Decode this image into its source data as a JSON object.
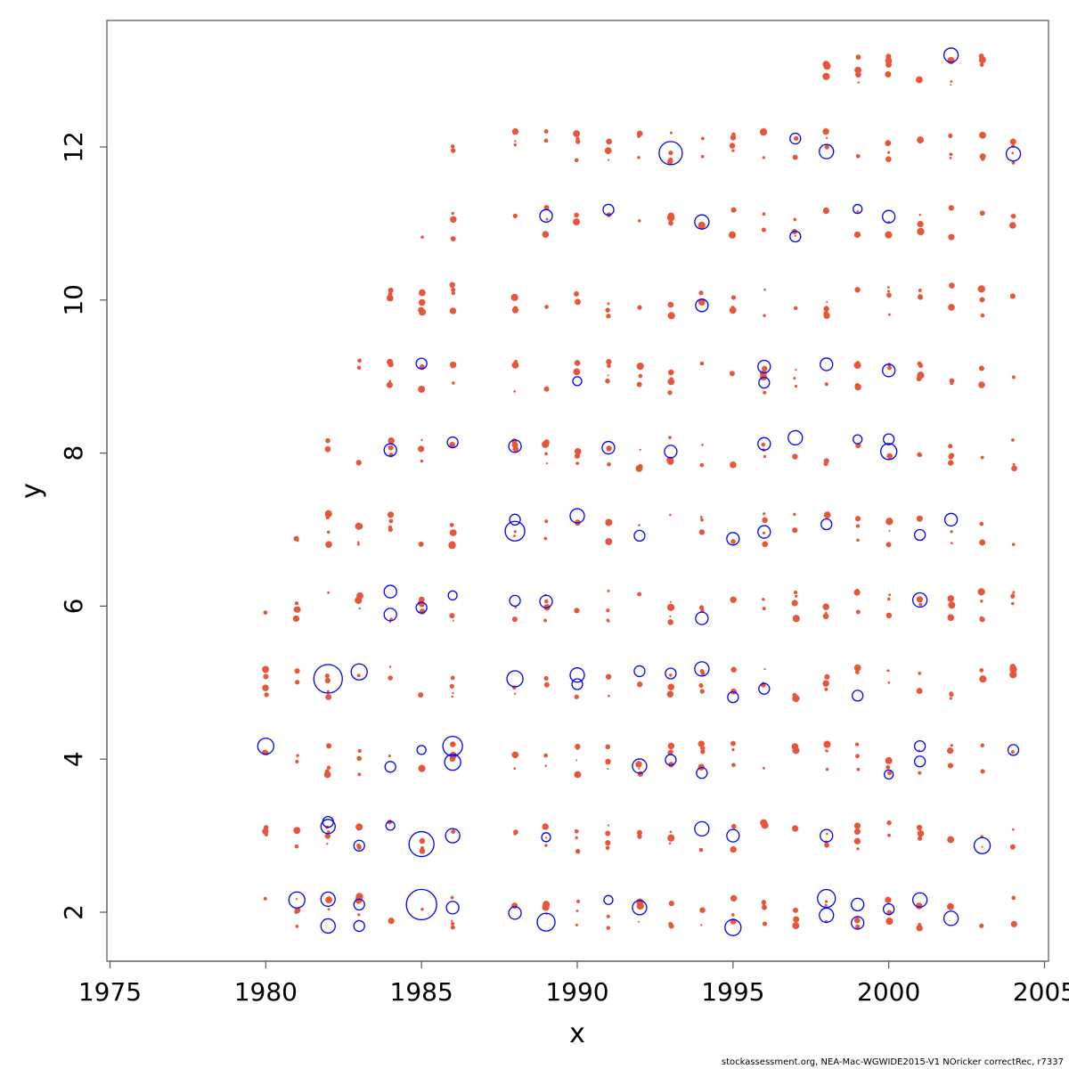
{
  "chart_data": {
    "type": "scatter",
    "title": "",
    "xlabel": "x",
    "ylabel": "y",
    "xlim": [
      1975,
      2005
    ],
    "ylim": [
      1.35,
      13.5
    ],
    "xticks": [
      "1975",
      "1980",
      "1985",
      "1990",
      "1995",
      "2000",
      "2005"
    ],
    "yticks": [
      "2",
      "4",
      "6",
      "8",
      "10",
      "12"
    ],
    "grid": false,
    "legend": "none",
    "colors": {
      "positive": "#0000ff",
      "negative": "#e8563a",
      "axis": "#555555"
    },
    "series": [
      {
        "values": [
          {
            "x": 1980,
            "y": 4.17,
            "r": 9
          },
          {
            "x": 1981,
            "y": 2.16,
            "r": 9
          },
          {
            "x": 1982,
            "y": 5.05,
            "r": 16
          },
          {
            "x": 1982,
            "y": 2.17,
            "r": 8
          },
          {
            "x": 1982,
            "y": 1.82,
            "r": 8
          },
          {
            "x": 1982,
            "y": 3.12,
            "r": 8
          },
          {
            "x": 1982,
            "y": 3.18,
            "r": 6
          },
          {
            "x": 1983,
            "y": 5.14,
            "r": 9
          },
          {
            "x": 1983,
            "y": 2.87,
            "r": 6
          },
          {
            "x": 1983,
            "y": 2.1,
            "r": 6
          },
          {
            "x": 1983,
            "y": 1.82,
            "r": 6
          },
          {
            "x": 1984,
            "y": 8.04,
            "r": 7
          },
          {
            "x": 1984,
            "y": 6.19,
            "r": 7
          },
          {
            "x": 1984,
            "y": 5.89,
            "r": 7
          },
          {
            "x": 1984,
            "y": 3.9,
            "r": 6
          },
          {
            "x": 1984,
            "y": 3.13,
            "r": 5
          },
          {
            "x": 1985,
            "y": 9.17,
            "r": 6
          },
          {
            "x": 1985,
            "y": 5.98,
            "r": 6
          },
          {
            "x": 1985,
            "y": 2.89,
            "r": 14
          },
          {
            "x": 1985,
            "y": 2.1,
            "r": 17
          },
          {
            "x": 1985,
            "y": 4.12,
            "r": 5
          },
          {
            "x": 1986,
            "y": 8.14,
            "r": 6
          },
          {
            "x": 1986,
            "y": 6.14,
            "r": 5
          },
          {
            "x": 1986,
            "y": 4.17,
            "r": 11
          },
          {
            "x": 1986,
            "y": 3.96,
            "r": 9
          },
          {
            "x": 1986,
            "y": 3.0,
            "r": 8
          },
          {
            "x": 1986,
            "y": 2.06,
            "r": 7
          },
          {
            "x": 1988,
            "y": 8.09,
            "r": 7
          },
          {
            "x": 1988,
            "y": 6.98,
            "r": 11
          },
          {
            "x": 1988,
            "y": 7.13,
            "r": 6
          },
          {
            "x": 1988,
            "y": 5.05,
            "r": 9
          },
          {
            "x": 1988,
            "y": 1.99,
            "r": 7
          },
          {
            "x": 1988,
            "y": 6.07,
            "r": 6
          },
          {
            "x": 1989,
            "y": 11.1,
            "r": 7
          },
          {
            "x": 1989,
            "y": 6.06,
            "r": 7
          },
          {
            "x": 1989,
            "y": 1.87,
            "r": 10
          },
          {
            "x": 1989,
            "y": 2.98,
            "r": 5
          },
          {
            "x": 1990,
            "y": 7.18,
            "r": 8
          },
          {
            "x": 1990,
            "y": 5.1,
            "r": 8
          },
          {
            "x": 1990,
            "y": 4.98,
            "r": 6
          },
          {
            "x": 1990,
            "y": 8.94,
            "r": 5
          },
          {
            "x": 1991,
            "y": 11.18,
            "r": 6
          },
          {
            "x": 1991,
            "y": 8.07,
            "r": 7
          },
          {
            "x": 1991,
            "y": 2.16,
            "r": 5
          },
          {
            "x": 1992,
            "y": 3.91,
            "r": 8
          },
          {
            "x": 1992,
            "y": 2.06,
            "r": 8
          },
          {
            "x": 1992,
            "y": 5.15,
            "r": 6
          },
          {
            "x": 1992,
            "y": 6.92,
            "r": 6
          },
          {
            "x": 1993,
            "y": 11.92,
            "r": 13
          },
          {
            "x": 1993,
            "y": 8.02,
            "r": 7
          },
          {
            "x": 1993,
            "y": 5.12,
            "r": 6
          },
          {
            "x": 1993,
            "y": 3.99,
            "r": 6
          },
          {
            "x": 1994,
            "y": 11.02,
            "r": 8
          },
          {
            "x": 1994,
            "y": 9.93,
            "r": 7
          },
          {
            "x": 1994,
            "y": 5.18,
            "r": 8
          },
          {
            "x": 1994,
            "y": 5.84,
            "r": 7
          },
          {
            "x": 1994,
            "y": 3.82,
            "r": 6
          },
          {
            "x": 1994,
            "y": 3.09,
            "r": 8
          },
          {
            "x": 1995,
            "y": 6.88,
            "r": 7
          },
          {
            "x": 1995,
            "y": 4.81,
            "r": 6
          },
          {
            "x": 1995,
            "y": 1.8,
            "r": 9
          },
          {
            "x": 1995,
            "y": 3.0,
            "r": 7
          },
          {
            "x": 1996,
            "y": 9.13,
            "r": 7
          },
          {
            "x": 1996,
            "y": 8.92,
            "r": 6
          },
          {
            "x": 1996,
            "y": 8.12,
            "r": 7
          },
          {
            "x": 1996,
            "y": 6.97,
            "r": 7
          },
          {
            "x": 1996,
            "y": 4.92,
            "r": 6
          },
          {
            "x": 1997,
            "y": 12.11,
            "r": 6
          },
          {
            "x": 1997,
            "y": 8.2,
            "r": 8
          },
          {
            "x": 1997,
            "y": 10.83,
            "r": 6
          },
          {
            "x": 1998,
            "y": 11.94,
            "r": 8
          },
          {
            "x": 1998,
            "y": 9.16,
            "r": 7
          },
          {
            "x": 1998,
            "y": 7.07,
            "r": 6
          },
          {
            "x": 1998,
            "y": 2.18,
            "r": 10
          },
          {
            "x": 1998,
            "y": 1.96,
            "r": 8
          },
          {
            "x": 1998,
            "y": 3.0,
            "r": 7
          },
          {
            "x": 1999,
            "y": 11.19,
            "r": 5
          },
          {
            "x": 1999,
            "y": 8.18,
            "r": 5
          },
          {
            "x": 1999,
            "y": 4.83,
            "r": 6
          },
          {
            "x": 1999,
            "y": 2.1,
            "r": 7
          },
          {
            "x": 1999,
            "y": 1.86,
            "r": 7
          },
          {
            "x": 2000,
            "y": 11.09,
            "r": 7
          },
          {
            "x": 2000,
            "y": 9.08,
            "r": 7
          },
          {
            "x": 2000,
            "y": 8.02,
            "r": 9
          },
          {
            "x": 2000,
            "y": 8.18,
            "r": 6
          },
          {
            "x": 2000,
            "y": 3.8,
            "r": 5
          },
          {
            "x": 2000,
            "y": 2.04,
            "r": 6
          },
          {
            "x": 2001,
            "y": 6.08,
            "r": 8
          },
          {
            "x": 2001,
            "y": 6.93,
            "r": 6
          },
          {
            "x": 2001,
            "y": 4.17,
            "r": 6
          },
          {
            "x": 2001,
            "y": 3.97,
            "r": 6
          },
          {
            "x": 2001,
            "y": 2.16,
            "r": 8
          },
          {
            "x": 2002,
            "y": 13.2,
            "r": 8
          },
          {
            "x": 2002,
            "y": 7.13,
            "r": 7
          },
          {
            "x": 2002,
            "y": 1.92,
            "r": 8
          },
          {
            "x": 2003,
            "y": 2.87,
            "r": 9
          },
          {
            "x": 2004,
            "y": 11.91,
            "r": 8
          },
          {
            "x": 2004,
            "y": 4.12,
            "r": 6
          }
        ]
      }
    ]
  },
  "footer": {
    "caption": "stockassessment.org, NEA-Mac-WGWIDE2015-V1  NOricker  correctRec, r7337"
  }
}
